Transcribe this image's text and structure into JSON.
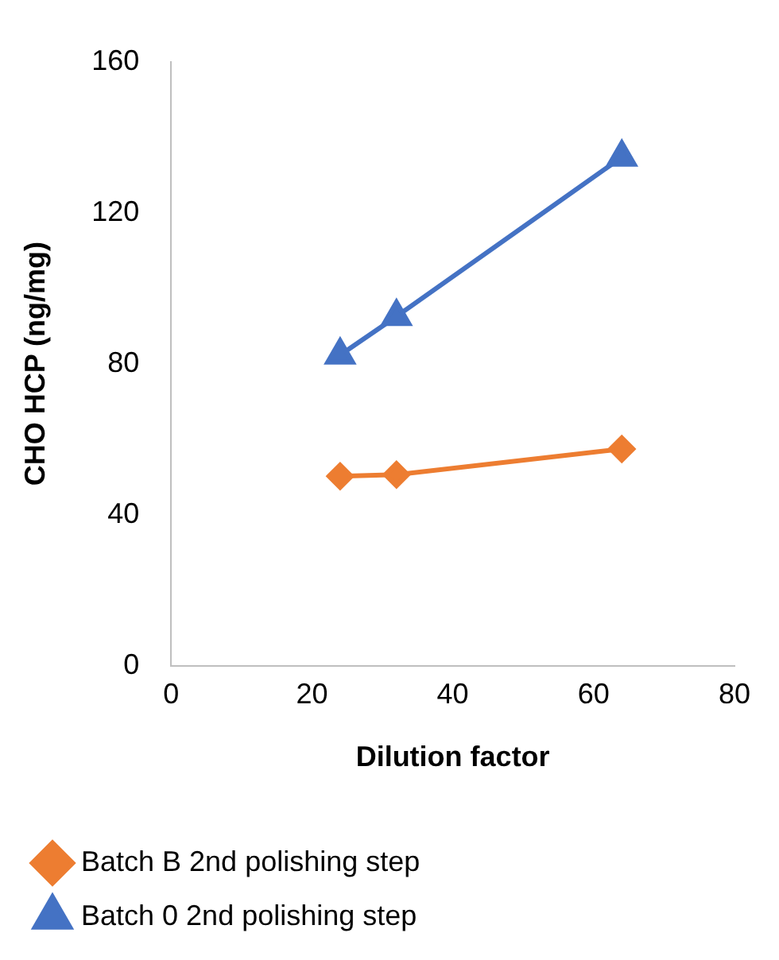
{
  "chart_data": {
    "type": "line",
    "xlabel": "Dilution factor",
    "ylabel": "CHO HCP (ng/mg)",
    "x": [
      24,
      32,
      64
    ],
    "series": [
      {
        "name": "Batch B 2nd polishing step",
        "color": "#ed7d31",
        "marker": "diamond",
        "values": [
          50.2,
          50.6,
          57.4
        ]
      },
      {
        "name": "Batch 0 2nd polishing step",
        "color": "#4472c4",
        "marker": "triangle",
        "values": [
          82.3,
          92.5,
          134.7
        ]
      }
    ],
    "xlim": [
      0,
      80
    ],
    "xticks": [
      0,
      20,
      40,
      60,
      80
    ],
    "ylim": [
      0,
      160
    ],
    "yticks": [
      0,
      40,
      80,
      120,
      160
    ],
    "grid": false,
    "legend": "bottom"
  }
}
